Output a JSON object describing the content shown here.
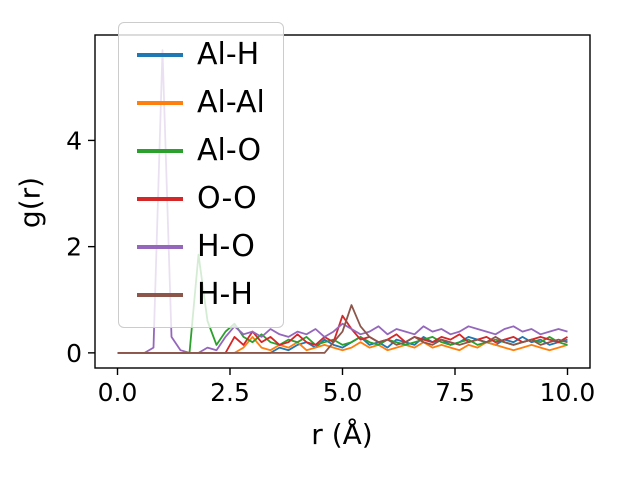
{
  "figure": {
    "background": "#ffffff",
    "spine_color": "#000000",
    "legend_border_color": "#cccccc"
  },
  "chart_data": {
    "type": "line",
    "title": "",
    "xlabel": "r (Å)",
    "ylabel": "g(r)",
    "grid": false,
    "legend_position": "upper left",
    "xlim": [
      -0.5,
      10.5
    ],
    "ylim": [
      -0.285,
      5.985
    ],
    "x_ticks": [
      {
        "value": 0,
        "label": "0.0"
      },
      {
        "value": 2.5,
        "label": "2.5"
      },
      {
        "value": 5,
        "label": "5.0"
      },
      {
        "value": 7.5,
        "label": "7.5"
      },
      {
        "value": 10,
        "label": "10.0"
      }
    ],
    "y_ticks": [
      {
        "value": 0,
        "label": "0"
      },
      {
        "value": 2,
        "label": "2"
      },
      {
        "value": 4,
        "label": "4"
      }
    ],
    "x": [
      0,
      0.2,
      0.4,
      0.6,
      0.8,
      1,
      1.2,
      1.4,
      1.6,
      1.8,
      2,
      2.2,
      2.4,
      2.6,
      2.8,
      3,
      3.2,
      3.4,
      3.6,
      3.8,
      4,
      4.2,
      4.4,
      4.6,
      4.8,
      5,
      5.2,
      5.4,
      5.6,
      5.8,
      6,
      6.2,
      6.4,
      6.6,
      6.8,
      7,
      7.2,
      7.4,
      7.6,
      7.8,
      8,
      8.2,
      8.4,
      8.6,
      8.8,
      9,
      9.2,
      9.4,
      9.6,
      9.8,
      10
    ],
    "series": [
      {
        "name": "Al-H",
        "color": "#1f77b4",
        "values": [
          0,
          0,
          0,
          0,
          0,
          0,
          0,
          0,
          0,
          0,
          0,
          0,
          0,
          0,
          0,
          0,
          0,
          0,
          0.1,
          0.05,
          0.15,
          0.2,
          0.1,
          0.25,
          0.15,
          0.1,
          0.2,
          0.3,
          0.15,
          0.2,
          0.1,
          0.25,
          0.2,
          0.15,
          0.3,
          0.2,
          0.25,
          0.15,
          0.2,
          0.3,
          0.25,
          0.2,
          0.15,
          0.25,
          0.2,
          0.3,
          0.2,
          0.25,
          0.15,
          0.2,
          0.25
        ]
      },
      {
        "name": "Al-Al",
        "color": "#ff7f0e",
        "values": [
          0,
          0,
          0,
          0,
          0,
          0,
          0,
          0,
          0,
          0,
          0,
          0,
          0,
          0,
          0.1,
          0.3,
          0.1,
          0.05,
          0.15,
          0.1,
          0.2,
          0.05,
          0.1,
          0.15,
          0.1,
          0.05,
          0.1,
          0.2,
          0.1,
          0.15,
          0.05,
          0.1,
          0.15,
          0.1,
          0.2,
          0.1,
          0.15,
          0.1,
          0.05,
          0.15,
          0.1,
          0.2,
          0.15,
          0.1,
          0.05,
          0.1,
          0.15,
          0.1,
          0.05,
          0.1,
          0.15
        ]
      },
      {
        "name": "Al-O",
        "color": "#2ca02c",
        "values": [
          0,
          0,
          0,
          0,
          0,
          0,
          0,
          0,
          0,
          1.85,
          0.6,
          0.15,
          0.4,
          0.55,
          0.3,
          0.2,
          0.35,
          0.2,
          0.15,
          0.25,
          0.2,
          0.3,
          0.15,
          0.2,
          0.25,
          0.15,
          0.2,
          0.3,
          0.2,
          0.15,
          0.25,
          0.2,
          0.15,
          0.2,
          0.25,
          0.3,
          0.2,
          0.15,
          0.2,
          0.25,
          0.15,
          0.2,
          0.25,
          0.2,
          0.15,
          0.2,
          0.25,
          0.2,
          0.3,
          0.2,
          0.15
        ]
      },
      {
        "name": "O-O",
        "color": "#d62728",
        "values": [
          0,
          0,
          0,
          0,
          0,
          0,
          0,
          0,
          0,
          0,
          0,
          0,
          0,
          0.3,
          0.15,
          0.4,
          0.2,
          0.3,
          0.15,
          0.2,
          0.35,
          0.2,
          0.15,
          0.3,
          0.2,
          0.7,
          0.45,
          0.25,
          0.3,
          0.2,
          0.25,
          0.35,
          0.2,
          0.3,
          0.25,
          0.2,
          0.3,
          0.25,
          0.35,
          0.2,
          0.25,
          0.3,
          0.2,
          0.25,
          0.3,
          0.2,
          0.25,
          0.3,
          0.25,
          0.2,
          0.3
        ]
      },
      {
        "name": "H-O",
        "color": "#9467bd",
        "values": [
          0,
          0,
          0,
          0,
          0.1,
          5.7,
          0.3,
          0.05,
          0,
          0,
          0.1,
          0.05,
          0.3,
          0.5,
          0.35,
          0.4,
          0.3,
          0.45,
          0.35,
          0.3,
          0.4,
          0.35,
          0.45,
          0.3,
          0.4,
          0.55,
          0.45,
          0.35,
          0.4,
          0.5,
          0.35,
          0.45,
          0.4,
          0.35,
          0.5,
          0.4,
          0.45,
          0.35,
          0.4,
          0.5,
          0.45,
          0.4,
          0.35,
          0.45,
          0.5,
          0.4,
          0.45,
          0.35,
          0.4,
          0.45,
          0.4
        ]
      },
      {
        "name": "H-H",
        "color": "#8c564b",
        "values": [
          0,
          0,
          0,
          0,
          0,
          0,
          0,
          0,
          0,
          0,
          0,
          0,
          0,
          0,
          0,
          0,
          0,
          0,
          0,
          0,
          0,
          0,
          0,
          0,
          0.2,
          0.4,
          0.9,
          0.5,
          0.3,
          0.2,
          0.25,
          0.15,
          0.2,
          0.3,
          0.2,
          0.15,
          0.25,
          0.2,
          0.15,
          0.2,
          0.25,
          0.2,
          0.3,
          0.2,
          0.15,
          0.2,
          0.25,
          0.15,
          0.2,
          0.25,
          0.2
        ]
      }
    ]
  }
}
